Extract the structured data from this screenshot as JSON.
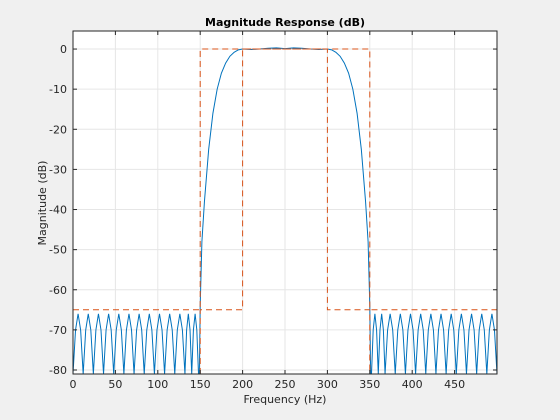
{
  "chart_data": {
    "type": "line",
    "title": "Magnitude Response (dB)",
    "xlabel": "Frequency (Hz)",
    "ylabel": "Magnitude (dB)",
    "xlim": [
      0,
      500
    ],
    "ylim": [
      -81,
      4.5
    ],
    "xticks": [
      0,
      50,
      100,
      150,
      200,
      250,
      300,
      350,
      400,
      450
    ],
    "yticks": [
      0,
      -10,
      -20,
      -30,
      -40,
      -50,
      -60,
      -70,
      -80
    ],
    "grid": true,
    "series": [
      {
        "color": "#0072bd",
        "style": "solid",
        "points": [
          [
            0,
            -81
          ],
          [
            3,
            -70
          ],
          [
            6,
            -66
          ],
          [
            9,
            -70
          ],
          [
            12,
            -81
          ],
          [
            15,
            -70
          ],
          [
            18,
            -66
          ],
          [
            21,
            -70
          ],
          [
            24,
            -81
          ],
          [
            27,
            -70
          ],
          [
            30,
            -66
          ],
          [
            33,
            -70
          ],
          [
            36,
            -81
          ],
          [
            39,
            -70
          ],
          [
            42,
            -66
          ],
          [
            45,
            -70
          ],
          [
            48,
            -81
          ],
          [
            51,
            -70
          ],
          [
            54,
            -66
          ],
          [
            57,
            -70
          ],
          [
            60,
            -81
          ],
          [
            63,
            -70
          ],
          [
            66,
            -66
          ],
          [
            69,
            -70
          ],
          [
            72,
            -81
          ],
          [
            75,
            -70
          ],
          [
            78,
            -66
          ],
          [
            81,
            -70
          ],
          [
            84,
            -81
          ],
          [
            87,
            -70
          ],
          [
            90,
            -66
          ],
          [
            93,
            -70
          ],
          [
            96,
            -81
          ],
          [
            99,
            -70
          ],
          [
            102,
            -66
          ],
          [
            105,
            -70
          ],
          [
            108,
            -81
          ],
          [
            111,
            -70
          ],
          [
            114,
            -66
          ],
          [
            117,
            -70
          ],
          [
            120,
            -81
          ],
          [
            123,
            -70
          ],
          [
            126,
            -66
          ],
          [
            129,
            -70
          ],
          [
            132,
            -81
          ],
          [
            134,
            -70
          ],
          [
            136,
            -66
          ],
          [
            138,
            -70
          ],
          [
            140,
            -81
          ],
          [
            142,
            -70
          ],
          [
            144,
            -66
          ],
          [
            146,
            -70
          ],
          [
            148,
            -81
          ],
          [
            149,
            -81
          ],
          [
            150,
            -64
          ],
          [
            152,
            -48
          ],
          [
            155,
            -38
          ],
          [
            160,
            -25
          ],
          [
            165,
            -16
          ],
          [
            170,
            -10
          ],
          [
            175,
            -6
          ],
          [
            180,
            -3.5
          ],
          [
            185,
            -1.8
          ],
          [
            190,
            -0.8
          ],
          [
            195,
            -0.2
          ],
          [
            200,
            0
          ],
          [
            210,
            -0.1
          ],
          [
            220,
            0
          ],
          [
            230,
            0.2
          ],
          [
            240,
            0.3
          ],
          [
            250,
            0.1
          ],
          [
            260,
            0.3
          ],
          [
            270,
            0.2
          ],
          [
            280,
            0
          ],
          [
            290,
            -0.1
          ],
          [
            300,
            0
          ],
          [
            305,
            -0.2
          ],
          [
            310,
            -0.8
          ],
          [
            315,
            -1.8
          ],
          [
            320,
            -3.5
          ],
          [
            325,
            -6
          ],
          [
            330,
            -10
          ],
          [
            335,
            -16
          ],
          [
            340,
            -25
          ],
          [
            345,
            -38
          ],
          [
            348,
            -48
          ],
          [
            350,
            -64
          ],
          [
            351,
            -81
          ],
          [
            352,
            -81
          ],
          [
            354,
            -70
          ],
          [
            356,
            -66
          ],
          [
            358,
            -70
          ],
          [
            360,
            -81
          ],
          [
            362,
            -70
          ],
          [
            364,
            -66
          ],
          [
            366,
            -70
          ],
          [
            368,
            -81
          ],
          [
            371,
            -70
          ],
          [
            374,
            -66
          ],
          [
            377,
            -70
          ],
          [
            380,
            -81
          ],
          [
            383,
            -70
          ],
          [
            386,
            -66
          ],
          [
            389,
            -70
          ],
          [
            392,
            -81
          ],
          [
            395,
            -70
          ],
          [
            398,
            -66
          ],
          [
            401,
            -70
          ],
          [
            404,
            -81
          ],
          [
            407,
            -70
          ],
          [
            410,
            -66
          ],
          [
            413,
            -70
          ],
          [
            416,
            -81
          ],
          [
            419,
            -70
          ],
          [
            422,
            -66
          ],
          [
            425,
            -70
          ],
          [
            428,
            -81
          ],
          [
            431,
            -70
          ],
          [
            434,
            -66
          ],
          [
            437,
            -70
          ],
          [
            440,
            -81
          ],
          [
            443,
            -70
          ],
          [
            446,
            -66
          ],
          [
            449,
            -70
          ],
          [
            452,
            -81
          ],
          [
            455,
            -70
          ],
          [
            458,
            -66
          ],
          [
            461,
            -70
          ],
          [
            464,
            -81
          ],
          [
            467,
            -70
          ],
          [
            470,
            -66
          ],
          [
            473,
            -70
          ],
          [
            476,
            -81
          ],
          [
            479,
            -70
          ],
          [
            482,
            -66
          ],
          [
            485,
            -70
          ],
          [
            488,
            -81
          ],
          [
            491,
            -70
          ],
          [
            494,
            -66
          ],
          [
            497,
            -70
          ],
          [
            500,
            -81
          ]
        ]
      },
      {
        "color": "#d95319",
        "style": "dashed",
        "points": [
          [
            0,
            -65
          ],
          [
            150,
            -65
          ],
          [
            150,
            0
          ],
          [
            350,
            0
          ],
          [
            350,
            -65
          ],
          [
            500,
            -65
          ]
        ]
      },
      {
        "color": "#d95319",
        "style": "dashed",
        "points": [
          [
            150,
            -81
          ],
          [
            150,
            -65
          ],
          [
            200,
            -65
          ],
          [
            200,
            0
          ],
          [
            300,
            0
          ],
          [
            300,
            -65
          ],
          [
            350,
            -65
          ],
          [
            350,
            -81
          ]
        ]
      }
    ]
  }
}
